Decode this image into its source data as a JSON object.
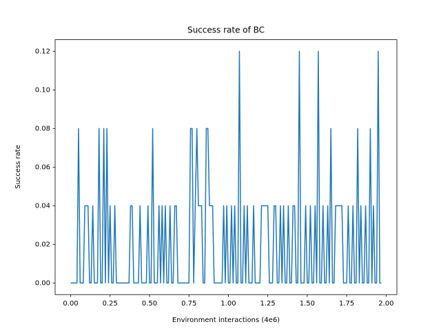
{
  "chart_data": {
    "type": "line",
    "title": "Success rate of BC",
    "xlabel": "Environment interactions (4e6)",
    "ylabel": "Success rate",
    "color": "#1f77b4",
    "x": [
      0,
      0.01,
      0.02,
      0.03,
      0.04,
      0.05,
      0.06,
      0.07,
      0.08,
      0.09,
      0.1,
      0.11,
      0.12,
      0.13,
      0.14,
      0.15,
      0.16,
      0.17,
      0.18,
      0.19,
      0.2,
      0.21,
      0.22,
      0.23,
      0.24,
      0.25,
      0.26,
      0.27,
      0.28,
      0.29,
      0.3,
      0.31,
      0.32,
      0.33,
      0.34,
      0.35,
      0.36,
      0.37,
      0.38,
      0.39,
      0.4,
      0.41,
      0.42,
      0.43,
      0.44,
      0.45,
      0.46,
      0.47,
      0.48,
      0.49,
      0.5,
      0.51,
      0.52,
      0.53,
      0.54,
      0.55,
      0.56,
      0.57,
      0.58,
      0.59,
      0.6,
      0.61,
      0.62,
      0.63,
      0.64,
      0.65,
      0.66,
      0.67,
      0.68,
      0.69,
      0.7,
      0.71,
      0.72,
      0.73,
      0.74,
      0.75,
      0.76,
      0.77,
      0.78,
      0.79,
      0.8,
      0.81,
      0.82,
      0.83,
      0.84,
      0.85,
      0.86,
      0.87,
      0.88,
      0.89,
      0.9,
      0.91,
      0.92,
      0.93,
      0.94,
      0.95,
      0.96,
      0.97,
      0.98,
      0.99,
      1,
      1.01,
      1.02,
      1.03,
      1.04,
      1.05,
      1.06,
      1.07,
      1.08,
      1.09,
      1.1,
      1.11,
      1.12,
      1.13,
      1.14,
      1.15,
      1.16,
      1.17,
      1.18,
      1.19,
      1.2,
      1.21,
      1.22,
      1.23,
      1.24,
      1.25,
      1.26,
      1.27,
      1.28,
      1.29,
      1.3,
      1.31,
      1.32,
      1.33,
      1.34,
      1.35,
      1.36,
      1.37,
      1.38,
      1.39,
      1.4,
      1.41,
      1.42,
      1.43,
      1.44,
      1.45,
      1.46,
      1.47,
      1.48,
      1.49,
      1.5,
      1.51,
      1.52,
      1.53,
      1.54,
      1.55,
      1.56,
      1.57,
      1.58,
      1.59,
      1.6,
      1.61,
      1.62,
      1.63,
      1.64,
      1.65,
      1.66,
      1.67,
      1.68,
      1.69,
      1.7,
      1.71,
      1.72,
      1.73,
      1.74,
      1.75,
      1.76,
      1.77,
      1.78,
      1.79,
      1.8,
      1.81,
      1.82,
      1.83,
      1.84,
      1.85,
      1.86,
      1.87,
      1.88,
      1.89,
      1.9,
      1.91,
      1.92,
      1.93,
      1.94,
      1.95,
      1.96,
      1.97
    ],
    "values": [
      0,
      0,
      0,
      0,
      0,
      0.08,
      0,
      0,
      0,
      0.04,
      0.04,
      0.04,
      0,
      0,
      0.04,
      0,
      0,
      0,
      0.08,
      0,
      0,
      0.08,
      0,
      0.08,
      0,
      0.04,
      0,
      0,
      0.04,
      0,
      0,
      0,
      0,
      0,
      0,
      0,
      0,
      0,
      0.04,
      0.04,
      0,
      0,
      0,
      0,
      0.04,
      0,
      0,
      0,
      0,
      0.04,
      0,
      0,
      0.08,
      0,
      0,
      0,
      0.04,
      0,
      0.04,
      0,
      0.04,
      0,
      0,
      0.04,
      0,
      0,
      0.04,
      0.04,
      0,
      0,
      0,
      0,
      0,
      0,
      0,
      0,
      0.08,
      0.08,
      0,
      0.04,
      0.08,
      0.04,
      0.04,
      0.04,
      0,
      0,
      0.08,
      0.08,
      0.04,
      0.04,
      0.04,
      0,
      0,
      0,
      0,
      0,
      0,
      0.04,
      0,
      0.04,
      0,
      0,
      0.04,
      0,
      0.04,
      0,
      0,
      0.12,
      0,
      0,
      0.04,
      0,
      0.04,
      0,
      0,
      0,
      0.04,
      0,
      0,
      0,
      0,
      0.04,
      0.04,
      0.04,
      0.04,
      0.04,
      0,
      0,
      0,
      0.04,
      0.04,
      0,
      0,
      0.04,
      0,
      0.04,
      0,
      0,
      0.04,
      0,
      0,
      0.04,
      0.04,
      0,
      0,
      0.12,
      0,
      0,
      0,
      0.04,
      0,
      0,
      0.04,
      0,
      0,
      0.04,
      0,
      0.12,
      0,
      0,
      0.04,
      0,
      0,
      0.04,
      0,
      0.08,
      0,
      0,
      0.04,
      0.04,
      0.04,
      0.04,
      0.04,
      0,
      0,
      0,
      0.04,
      0,
      0,
      0.04,
      0,
      0,
      0.08,
      0,
      0.04,
      0,
      0,
      0.04,
      0,
      0,
      0.08,
      0,
      0.04,
      0,
      0,
      0.12,
      0,
      0
    ],
    "xlim": [
      -0.0985,
      2.0685
    ],
    "xticks": [
      {
        "value": 0,
        "label": "0.00"
      },
      {
        "value": 0.25,
        "label": "0.25"
      },
      {
        "value": 0.5,
        "label": "0.50"
      },
      {
        "value": 0.75,
        "label": "0.75"
      },
      {
        "value": 1,
        "label": "1.00"
      },
      {
        "value": 1.25,
        "label": "1.25"
      },
      {
        "value": 1.5,
        "label": "1.50"
      },
      {
        "value": 1.75,
        "label": "1.75"
      },
      {
        "value": 2,
        "label": "2.00"
      }
    ],
    "ylim": [
      -0.006,
      0.126
    ],
    "yticks": [
      {
        "value": 0,
        "label": "0.00"
      },
      {
        "value": 0.02,
        "label": "0.02"
      },
      {
        "value": 0.04,
        "label": "0.04"
      },
      {
        "value": 0.06,
        "label": "0.06"
      },
      {
        "value": 0.08,
        "label": "0.08"
      },
      {
        "value": 0.1,
        "label": "0.10"
      },
      {
        "value": 0.12,
        "label": "0.12"
      }
    ],
    "grid": false
  }
}
